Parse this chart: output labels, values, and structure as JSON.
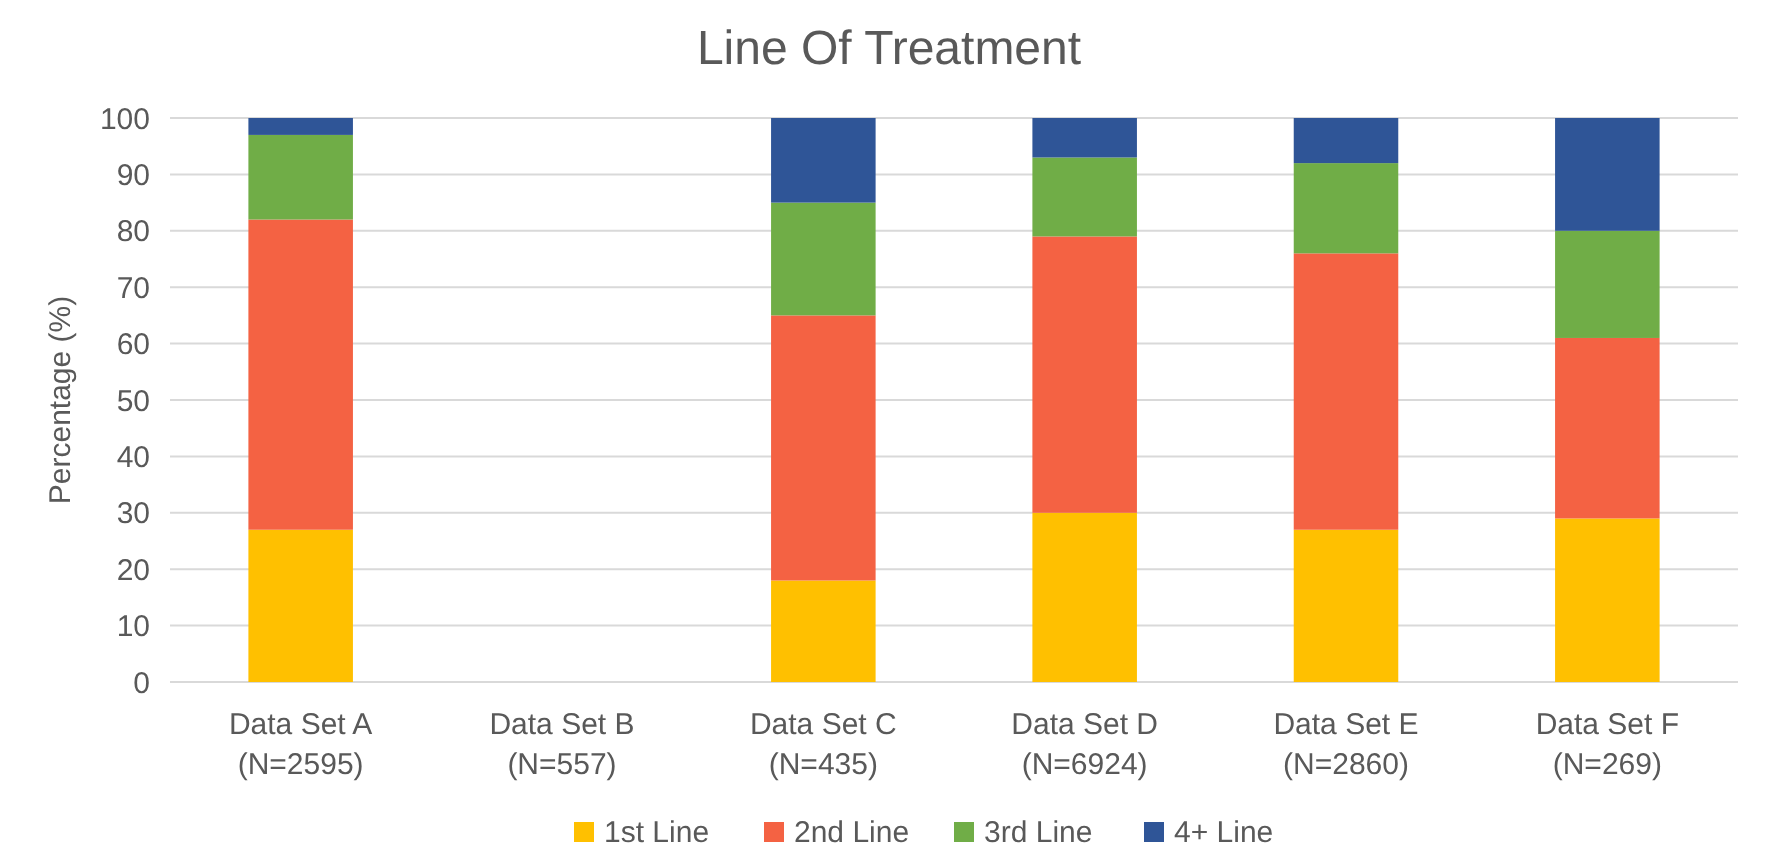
{
  "chart_data": {
    "type": "bar",
    "title": "Line Of Treatment",
    "ylabel": "Percentage (%)",
    "stacked": true,
    "categories": [
      "Data Set A\n(N=2595)",
      "Data Set B\n(N=557)",
      "Data Set C\n(N=435)",
      "Data Set D\n(N=6924)",
      "Data Set E\n(N=2860)",
      "Data Set F\n(N=269)"
    ],
    "series": [
      {
        "name": "1st Line",
        "color": "#ffc000",
        "values": [
          27,
          null,
          18,
          30,
          27,
          29
        ]
      },
      {
        "name": "2nd Line",
        "color": "#f46243",
        "values": [
          55,
          null,
          47,
          49,
          49,
          32
        ]
      },
      {
        "name": "3rd Line",
        "color": "#70ad47",
        "values": [
          15,
          null,
          20,
          14,
          16,
          19
        ]
      },
      {
        "name": "4+ Line",
        "color": "#2f5597",
        "values": [
          3,
          null,
          15,
          7,
          8,
          20
        ]
      }
    ],
    "ylim": [
      0,
      100
    ],
    "yticks": [
      0,
      10,
      20,
      30,
      40,
      50,
      60,
      70,
      80,
      90,
      100
    ],
    "grid": "y",
    "legend": "bottom"
  }
}
